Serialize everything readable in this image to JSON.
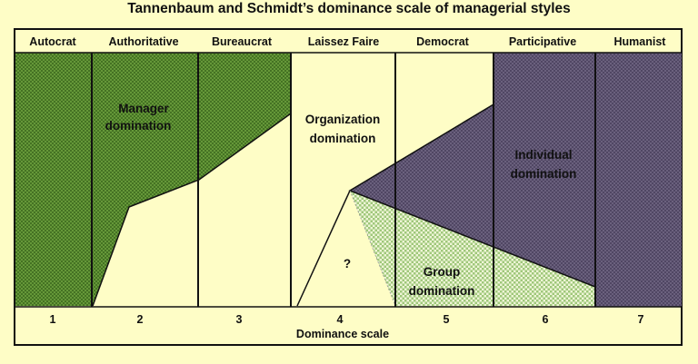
{
  "title": "Tannenbaum and Schmidt’s dominance scale of managerial styles",
  "columns": [
    {
      "header": "Autocrat",
      "number": "1"
    },
    {
      "header": "Authoritative",
      "number": "2"
    },
    {
      "header": "Bureaucrat",
      "number": "3"
    },
    {
      "header": "Laissez Faire",
      "number": "4"
    },
    {
      "header": "Democrat",
      "number": "5"
    },
    {
      "header": "Participative",
      "number": "6"
    },
    {
      "header": "Humanist",
      "number": "7"
    }
  ],
  "regions": {
    "manager": {
      "line1": "Manager",
      "line2": "domination"
    },
    "organization": {
      "line1": "Organization",
      "line2": "domination"
    },
    "individual": {
      "line1": "Individual",
      "line2": "domination"
    },
    "group": {
      "line1": "Group",
      "line2": "domination"
    },
    "unknown": "?"
  },
  "footer": "Dominance scale",
  "colors": {
    "background": "#fefdc6",
    "manager": "#6a9d3c",
    "individual": "#6e6481",
    "group": "#c4dca4",
    "border": "#111111"
  }
}
